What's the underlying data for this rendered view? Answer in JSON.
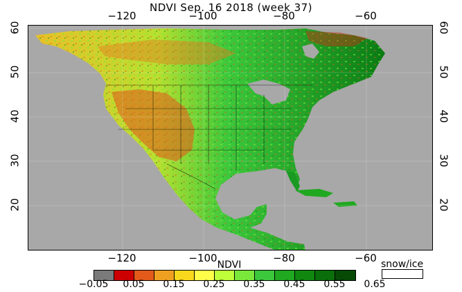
{
  "title": "NDVI Sep. 16 2018 (week 37)",
  "top_ticks": [
    "−120",
    "−100",
    "−80",
    "−60"
  ],
  "bottom_ticks": [
    "−120",
    "−100",
    "−80",
    "−60"
  ],
  "left_ticks": [
    "60",
    "50",
    "40",
    "30",
    "20"
  ],
  "right_ticks": [
    "60",
    "50",
    "40",
    "30",
    "20"
  ],
  "colorbar": {
    "title": "NDVI",
    "labels": [
      "−0.05",
      "0.05",
      "0.15",
      "0.25",
      "0.35",
      "0.45",
      "0.55",
      "0.65"
    ],
    "colors": [
      "#7a7a7a",
      "#cc0000",
      "#e35a1a",
      "#f0a020",
      "#f8d81c",
      "#ffff4a",
      "#bfff3a",
      "#7ae83a",
      "#3cc83c",
      "#20a820",
      "#108810",
      "#0a6e0a",
      "#064a06"
    ],
    "snow_label": "snow/ice",
    "snow_color": "#ffffff"
  },
  "map": {
    "ocean_color": "#a8a8a8",
    "lon_range": [
      -150,
      -50
    ],
    "lat_range": [
      10,
      61
    ]
  }
}
